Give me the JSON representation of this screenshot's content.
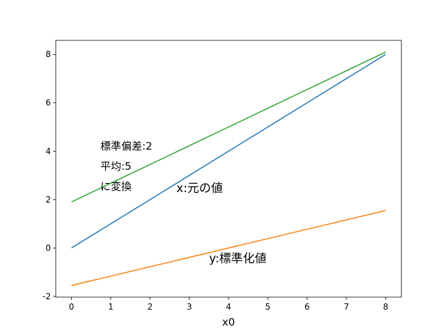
{
  "chart_data": {
    "type": "line",
    "xlabel": "x0",
    "x": [
      0,
      1,
      2,
      3,
      4,
      5,
      6,
      7,
      8
    ],
    "series": [
      {
        "color": "#1f77b4",
        "values": [
          0,
          1,
          2,
          3,
          4,
          5,
          6,
          7,
          8
        ]
      },
      {
        "color": "#ff7f0e",
        "values": [
          -1.549,
          -1.162,
          -0.775,
          -0.387,
          0,
          0.387,
          0.775,
          1.162,
          1.549
        ]
      },
      {
        "color": "#2ca02c",
        "values": [
          1.902,
          2.676,
          3.451,
          4.225,
          5,
          5.775,
          6.549,
          7.324,
          8.098
        ]
      }
    ],
    "annotations": [
      "標準偏差:2\n平均:5\nに変換",
      "x:元の値",
      "y:標準化値"
    ],
    "xlim": [
      -0.4,
      8.4
    ],
    "xticks": [
      0,
      1,
      2,
      3,
      4,
      5,
      6,
      7,
      8
    ],
    "ylim": [
      -2.03,
      8.58
    ],
    "yticks": [
      -2,
      0,
      2,
      4,
      6,
      8
    ]
  }
}
